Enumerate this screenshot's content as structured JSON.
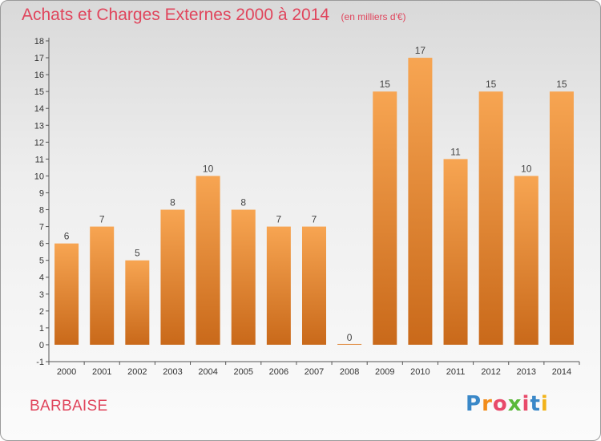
{
  "header": {
    "title": "Achats et Charges Externes 2000 à 2014",
    "subtitle": "(en milliers d'€)"
  },
  "footer": {
    "place": "BARBAISE",
    "logo_letters": [
      "P",
      "r",
      "o",
      "x",
      "i",
      "t",
      "i"
    ],
    "logo_colors": [
      "#3a88c8",
      "#f28c1a",
      "#e84a6a",
      "#5ab83a",
      "#e84a6a",
      "#3a88c8",
      "#f2b31a"
    ]
  },
  "chart_data": {
    "type": "bar",
    "categories": [
      "2000",
      "2001",
      "2002",
      "2003",
      "2004",
      "2005",
      "2006",
      "2007",
      "2008",
      "2009",
      "2010",
      "2011",
      "2012",
      "2013",
      "2014"
    ],
    "values": [
      6,
      7,
      5,
      8,
      10,
      8,
      7,
      7,
      0,
      15,
      17,
      11,
      15,
      10,
      15
    ],
    "value_labels": [
      "6",
      "7",
      "5",
      "8",
      "10",
      "8",
      "7",
      "7",
      "0",
      "15",
      "17",
      "11",
      "15",
      "10",
      "15"
    ],
    "y_ticks": [
      "-1",
      "0",
      "1",
      "2",
      "3",
      "4",
      "5",
      "6",
      "7",
      "8",
      "9",
      "10",
      "11",
      "12",
      "13",
      "14",
      "15",
      "16",
      "17",
      "18"
    ],
    "ylim": [
      -1,
      18
    ],
    "grid": false,
    "bar_color_top": "#f7a552",
    "bar_color_bottom": "#c9691a"
  }
}
